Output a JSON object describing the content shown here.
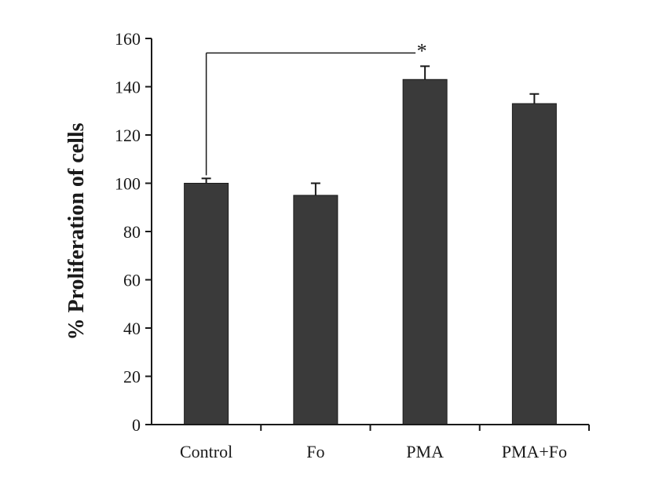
{
  "chart_data": {
    "type": "bar",
    "categories": [
      "Control",
      "Fo",
      "PMA",
      "PMA+Fo"
    ],
    "values": [
      100,
      95,
      143,
      133
    ],
    "errors": [
      2,
      5,
      5.5,
      4
    ],
    "title": "",
    "xlabel": "",
    "ylabel": "% Proliferation of cells",
    "ylim": [
      0,
      160
    ],
    "yticks": [
      0,
      20,
      40,
      60,
      80,
      100,
      120,
      140,
      160
    ],
    "grid": false,
    "legend": "none",
    "bar_color": "#3a3a3a",
    "significance": {
      "from": "Control",
      "to": "PMA",
      "marker": "*"
    }
  }
}
